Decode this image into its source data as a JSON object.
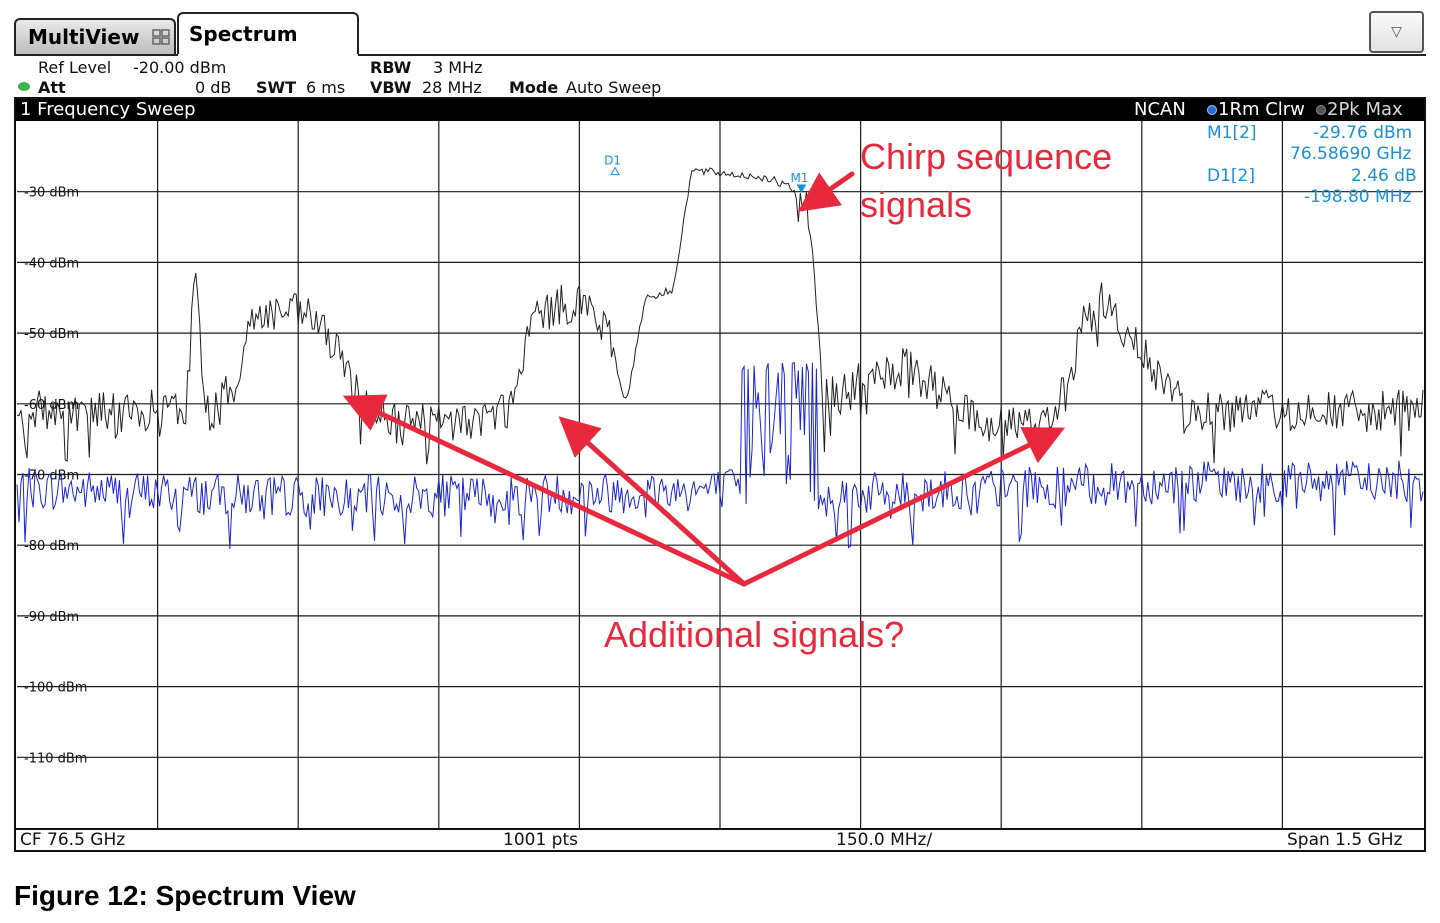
{
  "tabs": {
    "multiview": "MultiView",
    "spectrum": "Spectrum"
  },
  "settings": {
    "ref_level_label": "Ref Level",
    "ref_level_value": "-20.00 dBm",
    "att_label": "Att",
    "att_value": "0 dB",
    "swt_label": "SWT",
    "swt_value": "6 ms",
    "rbw_label": "RBW",
    "rbw_value": "3 MHz",
    "vbw_label": "VBW",
    "vbw_value": "28 MHz",
    "mode_label": "Mode",
    "mode_value": "Auto Sweep"
  },
  "window": {
    "title": "1 Frequency Sweep",
    "detector": "NCAN",
    "trace1": "1Rm Clrw",
    "trace2": "2Pk Max"
  },
  "markers": {
    "m1_label": "M1[2]",
    "m1_level": "-29.76 dBm",
    "m1_freq": "76.58690 GHz",
    "d1_label": "D1[2]",
    "d1_level": "2.46 dB",
    "d1_freq": "-198.80 MHz",
    "m1_tag": "M1",
    "d1_tag": "D1"
  },
  "footer": {
    "cf": "CF 76.5 GHz",
    "pts": "1001 pts",
    "div": "150.0 MHz/",
    "span": "Span 1.5 GHz"
  },
  "annotations": {
    "chirp": [
      "Chirp sequence",
      "signals"
    ],
    "additional": "Additional signals?"
  },
  "colors": {
    "trace_max": "#1f1f1f",
    "trace_clrw": "#1a22d6",
    "marker": "#1a90d8",
    "annotation": "#e8283c",
    "grid": "#1a1a1a"
  },
  "caption": "Figure 12: Spectrum View",
  "chart_data": {
    "type": "line",
    "title": "1 Frequency Sweep",
    "xlabel": "",
    "ylabel": "",
    "x_range_ghz": [
      75.75,
      77.25
    ],
    "ylim": [
      -120,
      -20
    ],
    "grid": true,
    "y_tick_labels": [
      "-30 dBm",
      "-40 dBm",
      "-50 dBm",
      "-60 dBm",
      "-70 dBm",
      "-80 dBm",
      "-90 dBm",
      "-100 dBm",
      "-110 dBm"
    ],
    "y_tick_values": [
      -30,
      -40,
      -50,
      -60,
      -70,
      -80,
      -90,
      -100,
      -110
    ],
    "series": [
      {
        "name": "2Pk Max",
        "x_ghz": [
          75.75,
          75.9,
          75.93,
          75.94,
          75.95,
          75.96,
          75.98,
          76.0,
          76.03,
          76.07,
          76.12,
          76.15,
          76.2,
          76.25,
          76.28,
          76.3,
          76.35,
          76.38,
          76.4,
          76.42,
          76.45,
          76.46,
          76.47,
          76.55,
          76.58,
          76.59,
          76.6,
          76.61,
          76.63,
          76.65,
          76.67,
          76.7,
          76.77,
          76.8,
          76.85,
          76.87,
          76.89,
          76.91,
          76.93,
          77.0,
          77.25
        ],
        "y_dbm": [
          -61,
          -61,
          -61,
          -41,
          -61,
          -61,
          -58,
          -48,
          -47,
          -48,
          -60,
          -62,
          -63,
          -62,
          -60,
          -48,
          -45,
          -50,
          -60,
          -45,
          -44,
          -35,
          -27,
          -28,
          -29.8,
          -30,
          -40,
          -59,
          -59,
          -57,
          -56,
          -55,
          -62,
          -63,
          -62,
          -58,
          -48,
          -45,
          -50,
          -61,
          -61
        ]
      },
      {
        "name": "1Rm Clrw",
        "x_ghz": [
          75.75,
          76.0,
          76.25,
          76.53,
          76.54,
          76.55,
          76.56,
          76.57,
          76.58,
          76.6,
          76.8,
          77.0,
          77.25
        ],
        "y_dbm": [
          -72,
          -73,
          -73,
          -72,
          -56,
          -73,
          -56,
          -72,
          -56,
          -73,
          -72,
          -71,
          -71
        ]
      }
    ],
    "markers": [
      {
        "name": "D1",
        "x_ghz": 76.3881,
        "y_dbm": -27.3
      },
      {
        "name": "M1",
        "x_ghz": 76.5869,
        "y_dbm": -29.76
      }
    ],
    "annotations": [
      "Chirp sequence signals",
      "Additional signals?"
    ]
  }
}
